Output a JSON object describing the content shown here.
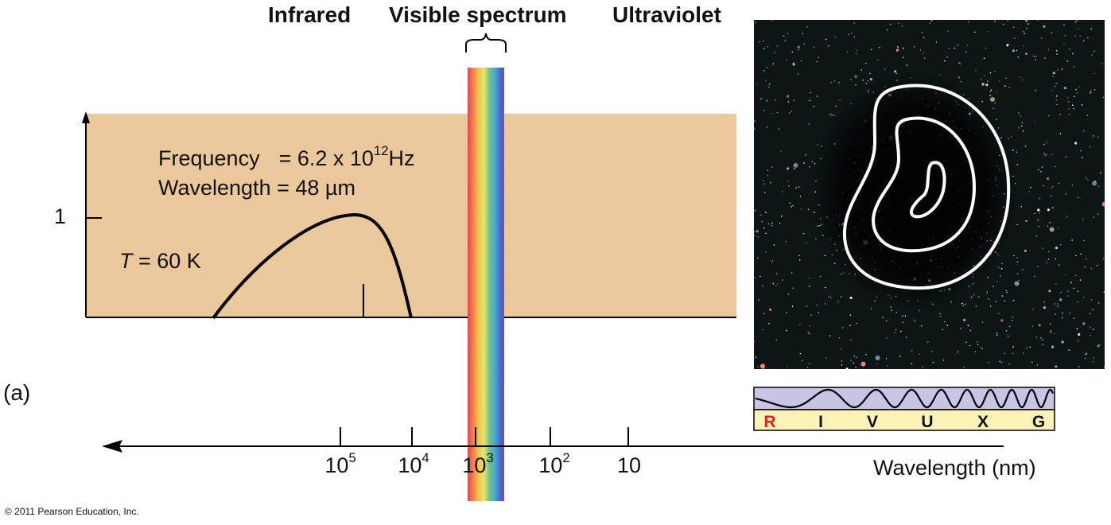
{
  "bands": {
    "infrared": "Infrared",
    "visible": "Visible spectrum",
    "ultraviolet": "Ultraviolet"
  },
  "plot": {
    "y_tick": "1",
    "frequency_label": "Frequency",
    "frequency_value": "= 6.2 x 10",
    "frequency_exp": "12",
    "frequency_unit": "Hz",
    "wavelength_label": "Wavelength = 48 µm",
    "temperature_symbol": "T",
    "temperature_value": " = 60 K",
    "background_color": "#ebc79c",
    "curve_color": "#000000"
  },
  "panel_label": "(a)",
  "axis": {
    "label": "Wavelength (nm)",
    "ticks": [
      {
        "base": "10",
        "exp": "5"
      },
      {
        "base": "10",
        "exp": "4"
      },
      {
        "base": "10",
        "exp": "3"
      },
      {
        "base": "10",
        "exp": "2"
      },
      {
        "base": "10",
        "exp": ""
      }
    ]
  },
  "riuvxg": {
    "letters": [
      "R",
      "I",
      "V",
      "U",
      "X",
      "G"
    ],
    "highlight": "R",
    "highlight_color": "#e02020",
    "wave_bg": "#c8c4e4",
    "letter_bg": "#fdf3b8"
  },
  "photo": {
    "description_icon": "star-field-image",
    "background": "#0d1516",
    "contour_color": "#ffffff"
  },
  "copyright": "© 2011 Pearson Education, Inc."
}
